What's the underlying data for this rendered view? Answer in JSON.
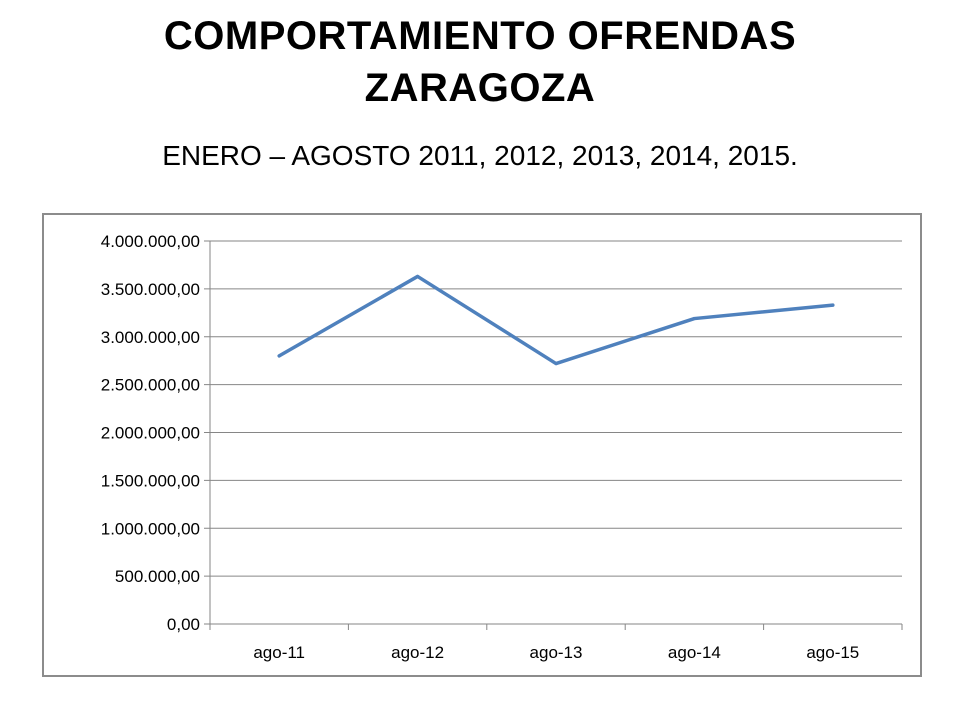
{
  "slide": {
    "title_line1": "COMPORTAMIENTO OFRENDAS",
    "title_line2": "ZARAGOZA",
    "subtitle": "ENERO – AGOSTO 2011, 2012, 2013, 2014, 2015."
  },
  "chart_data": {
    "type": "line",
    "categories": [
      "ago-11",
      "ago-12",
      "ago-13",
      "ago-14",
      "ago-15"
    ],
    "series": [
      {
        "values": [
          2800000,
          3630000,
          2720000,
          3190000,
          3330000
        ],
        "color": "#4f81bd"
      }
    ],
    "ylim": [
      0,
      4000000
    ],
    "yticks": [
      0,
      500000,
      1000000,
      1500000,
      2000000,
      2500000,
      3000000,
      3500000,
      4000000
    ],
    "ytick_labels": [
      "0,00",
      "500.000,00",
      "1.000.000,00",
      "1.500.000,00",
      "2.000.000,00",
      "2.500.000,00",
      "3.000.000,00",
      "3.500.000,00",
      "4.000.000,00"
    ],
    "grid": true,
    "gridline_color": "#868686"
  }
}
